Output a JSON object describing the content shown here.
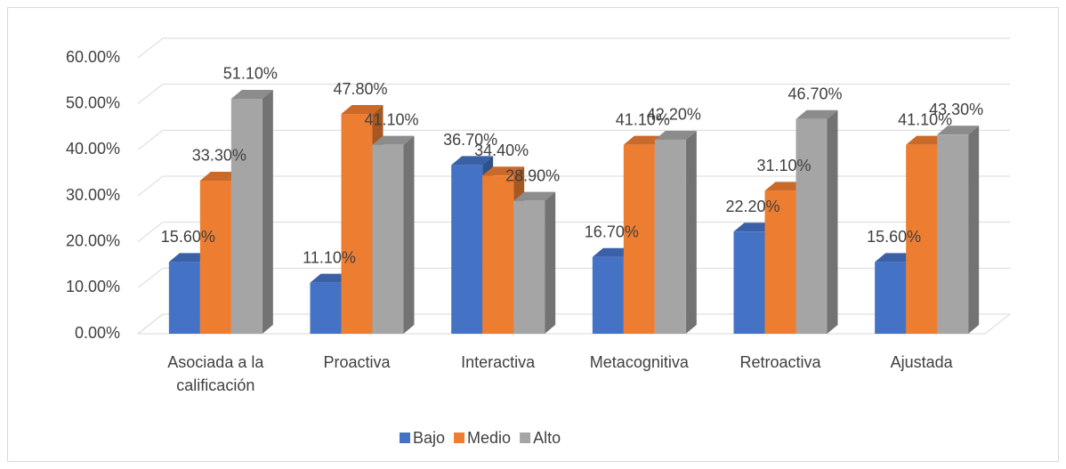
{
  "chart_data": {
    "type": "bar3d",
    "categories": [
      "Asociada a la calificación",
      "Proactiva",
      "Interactiva",
      "Metacognitiva",
      "Retroactiva",
      "Ajustada"
    ],
    "series": [
      {
        "name": "Bajo",
        "color": "#4472c4",
        "values": [
          15.6,
          11.1,
          36.7,
          16.7,
          22.2,
          15.6
        ],
        "value_labels": [
          "15.60%",
          "11.10%",
          "36.70%",
          "16.70%",
          "22.20%",
          "15.60%"
        ]
      },
      {
        "name": "Medio",
        "color": "#ed7d31",
        "values": [
          33.3,
          47.8,
          34.4,
          41.1,
          31.1,
          41.1
        ],
        "value_labels": [
          "33.30%",
          "47.80%",
          "34.40%",
          "41.10%",
          "31.10%",
          "41.10%"
        ]
      },
      {
        "name": "Alto",
        "color": "#a5a5a5",
        "values": [
          51.1,
          41.1,
          28.9,
          42.2,
          46.7,
          43.3
        ],
        "value_labels": [
          "51.10%",
          "41.10%",
          "28.90%",
          "42.20%",
          "46.70%",
          "43.30%"
        ]
      }
    ],
    "ylim": [
      0,
      60
    ],
    "yticks": [
      {
        "value": 0,
        "label": "0.00%"
      },
      {
        "value": 10,
        "label": "10.00%"
      },
      {
        "value": 20,
        "label": "20.00%"
      },
      {
        "value": 30,
        "label": "30.00%"
      },
      {
        "value": 40,
        "label": "40.00%"
      },
      {
        "value": 50,
        "label": "50.00%"
      },
      {
        "value": 60,
        "label": "60.00%"
      }
    ],
    "grid": true,
    "legend": "bottom"
  }
}
